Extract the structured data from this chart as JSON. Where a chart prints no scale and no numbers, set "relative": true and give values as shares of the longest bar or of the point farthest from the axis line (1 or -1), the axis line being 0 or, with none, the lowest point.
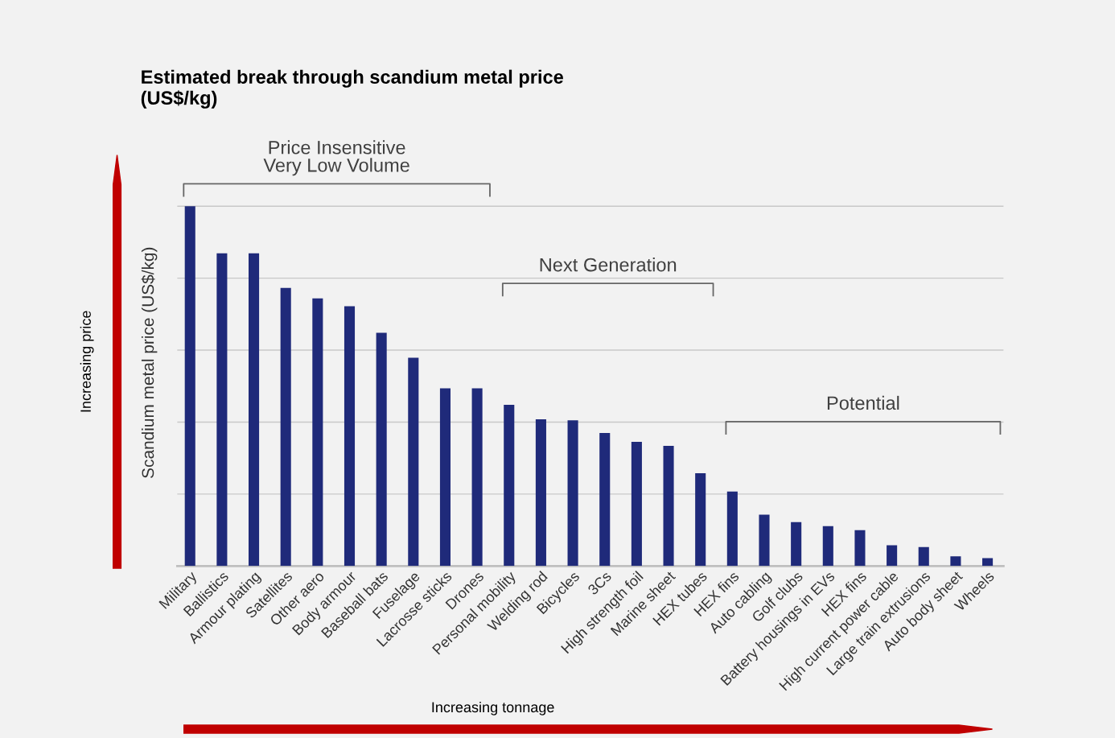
{
  "chart_data": {
    "type": "bar",
    "title": "Estimated break through scandium metal price\n(US$/kg)",
    "ylabel": "Scandium metal price (US$/kg)",
    "categories": [
      "Military",
      "Ballistics",
      "Armour plating",
      "Satellites",
      "Other aero",
      "Body armour",
      "Baseball bats",
      "Fuselage",
      "Lacrosse sticks",
      "Drones",
      "Personal mobility",
      "Welding rod",
      "Bicycles",
      "3Cs",
      "High strength foil",
      "Marine sheet",
      "HEX tubes",
      "HEX fins",
      "Auto cabling",
      "Golf clubs",
      "Battery housings in EVs",
      "HEX fins",
      "High current power cable",
      "Large train extrusions",
      "Auto body sheet",
      "Wheels"
    ],
    "values": [
      1,
      0.869,
      0.869,
      0.773,
      0.744,
      0.722,
      0.648,
      0.579,
      0.494,
      0.494,
      0.448,
      0.408,
      0.405,
      0.37,
      0.345,
      0.334,
      0.258,
      0.207,
      0.143,
      0.122,
      0.111,
      0.1,
      0.058,
      0.053,
      0.027,
      0.022
    ],
    "color": "#1f2a7a",
    "relative": true,
    "grid": "y",
    "annotations": [
      "Price Insensitive\nVery Low Volume",
      "Next Generation",
      "Potential",
      "Increasing price",
      "Increasing tonnage"
    ]
  }
}
